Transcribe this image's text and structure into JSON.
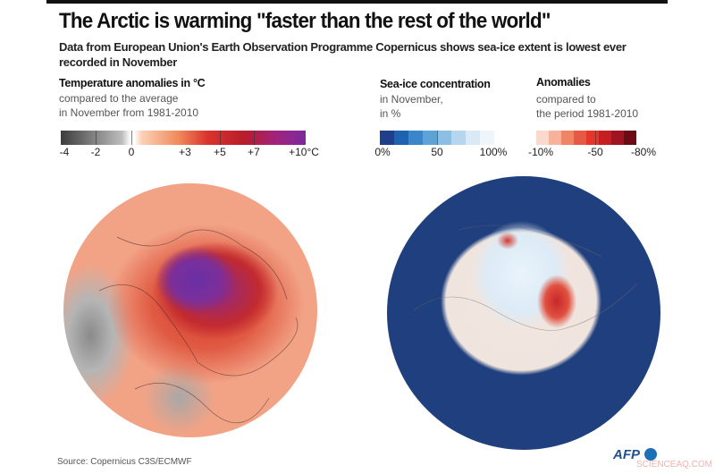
{
  "header": {
    "title": "The Arctic is warming \"faster than the rest of the world\"",
    "subtitle": "Data from European Union's Earth Observation Programme Copernicus shows sea-ice extent is lowest ever recorded in November"
  },
  "legend_temperature": {
    "title": "Temperature anomalies in °C",
    "subtitle": "compared to the average\nin November from 1981-2010",
    "ticks": [
      "-4",
      "-2",
      "0",
      "+3",
      "+5",
      "+7",
      "+10°C"
    ]
  },
  "legend_ice": {
    "title": "Sea-ice concentration",
    "subtitle": "in November,\nin %",
    "ticks": [
      "0%",
      "50",
      "100%"
    ]
  },
  "legend_anomaly": {
    "title": "Anomalies",
    "subtitle": "compared to\nthe period 1981-2010",
    "ticks": [
      "-10%",
      "-50",
      "-80%"
    ]
  },
  "colors": {
    "ice_scale": [
      "#1f3f8a",
      "#1e63b0",
      "#3a86c8",
      "#5ea3d6",
      "#8cbfe3",
      "#b7d6ee",
      "#d9e9f6",
      "#eef5fb"
    ],
    "anomaly_scale": [
      "#fbd9cc",
      "#f6b29b",
      "#ef8466",
      "#e55a43",
      "#e8352a",
      "#c51f24",
      "#9e1420",
      "#6d0b14"
    ]
  },
  "footer": {
    "source": "Source: Copernicus C3S/ECMWF",
    "logo": "AFP",
    "watermark": "SCIENCEAQ.COM"
  }
}
